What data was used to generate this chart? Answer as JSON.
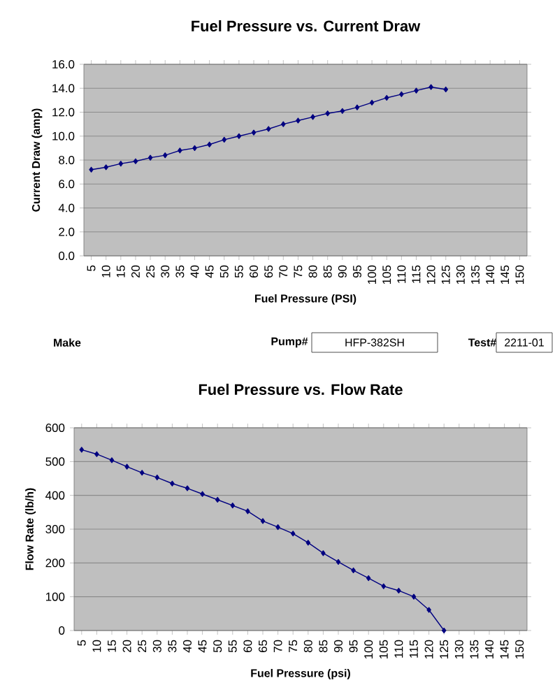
{
  "chart_data": [
    {
      "type": "line",
      "title": "Fuel Pressure vs. Current Draw",
      "xlabel": "Fuel Pressure (PSI)",
      "ylabel": "Current Draw (amp)",
      "color": "#000080",
      "marker": "diamond",
      "grid": "y",
      "categories": [
        "5",
        "10",
        "15",
        "20",
        "25",
        "30",
        "35",
        "40",
        "45",
        "50",
        "55",
        "60",
        "65",
        "70",
        "75",
        "80",
        "85",
        "90",
        "95",
        "100",
        "105",
        "110",
        "115",
        "120",
        "125",
        "130",
        "135",
        "140",
        "145",
        "150"
      ],
      "values": [
        7.2,
        7.4,
        7.7,
        7.9,
        8.2,
        8.4,
        8.8,
        9.0,
        9.3,
        9.7,
        10.0,
        10.3,
        10.6,
        11.0,
        11.3,
        11.6,
        11.9,
        12.1,
        12.4,
        12.8,
        13.2,
        13.5,
        13.8,
        14.1,
        13.9,
        null,
        null,
        null,
        null,
        null
      ],
      "ylim": [
        0,
        16
      ],
      "yticks": [
        {
          "value": 0,
          "label": "0.0"
        },
        {
          "value": 2,
          "label": "2.0"
        },
        {
          "value": 4,
          "label": "4.0"
        },
        {
          "value": 6,
          "label": "6.0"
        },
        {
          "value": 8,
          "label": "8.0"
        },
        {
          "value": 10,
          "label": "10.0"
        },
        {
          "value": 12,
          "label": "12.0"
        },
        {
          "value": 14,
          "label": "14.0"
        },
        {
          "value": 16,
          "label": "16.0"
        }
      ]
    },
    {
      "type": "other",
      "annotations": [
        "Make",
        "Pump#",
        "HFP-382SH",
        "Test#",
        "2211-01"
      ]
    },
    {
      "type": "line",
      "title": "Fuel Pressure vs. Flow Rate",
      "xlabel": "Fuel Pressure (psi)",
      "ylabel": "Flow Rate (lb/h)",
      "color": "#000080",
      "marker": "diamond",
      "grid": "y",
      "categories": [
        "5",
        "10",
        "15",
        "20",
        "25",
        "30",
        "35",
        "40",
        "45",
        "50",
        "55",
        "60",
        "65",
        "70",
        "75",
        "80",
        "85",
        "90",
        "95",
        "100",
        "105",
        "110",
        "115",
        "120",
        "125",
        "130",
        "135",
        "140",
        "145",
        "150"
      ],
      "values": [
        535,
        522,
        504,
        485,
        467,
        453,
        435,
        421,
        404,
        387,
        370,
        353,
        324,
        306,
        287,
        260,
        229,
        203,
        178,
        155,
        131,
        118,
        100,
        61,
        0,
        null,
        null,
        null,
        null,
        null
      ],
      "ylim": [
        0,
        600
      ],
      "yticks": [
        0,
        100,
        200,
        300,
        400,
        500,
        600
      ]
    }
  ]
}
